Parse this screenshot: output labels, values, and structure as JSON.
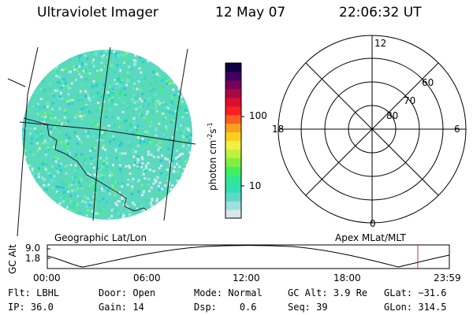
{
  "header": {
    "instrument": "Ultraviolet Imager",
    "date": "12 May 07",
    "time": "22:06:32 UT"
  },
  "geo_panel": {
    "label": "Geographic Lat/Lon"
  },
  "colorbar": {
    "unit_label": "photon cm",
    "unit_exp1": "-2",
    "unit_s": "s",
    "unit_exp2": "-1",
    "ticks": [
      "100",
      "10"
    ],
    "scale": "log",
    "colors": [
      "#d8e8e8",
      "#9de0dc",
      "#5fd8c8",
      "#30e0b0",
      "#30e890",
      "#40f060",
      "#80f040",
      "#c0f040",
      "#f0f040",
      "#f8d020",
      "#f8a020",
      "#f86020",
      "#f82020",
      "#d81030",
      "#a80840",
      "#780058",
      "#400060",
      "#100040"
    ]
  },
  "polar": {
    "label": "Apex MLat/MLT",
    "mlt_labels": {
      "top": "12",
      "left": "18",
      "right": "6",
      "bottom": "0"
    },
    "mlat_labels": [
      "60",
      "70",
      "80"
    ]
  },
  "altitude_plot": {
    "axis_label": "GC Alt",
    "y_ticks": [
      "9.0",
      "1.8"
    ],
    "x_ticks": [
      "00:00",
      "06:00",
      "12:00",
      "18:00",
      "23:59"
    ],
    "current_time_marker": "22:06",
    "marker_color": "#d03030"
  },
  "status": {
    "flt_label": "Flt:",
    "flt_value": "LBHL",
    "ip_label": "IP:",
    "ip_value": "36.0",
    "door_label": "Door:",
    "door_value": "Open",
    "gain_label": "Gain:",
    "gain_value": "14",
    "mode_label": "Mode:",
    "mode_value": "Normal",
    "dsp_label": "Dsp:",
    "dsp_value": "0.6",
    "gcalt_label": "GC Alt:",
    "gcalt_value": "3.9 Re",
    "seq_label": "Seq:",
    "seq_value": "39",
    "glat_label": "GLat:",
    "glat_value": "−31.6",
    "glon_label": "GLon:",
    "glon_value": "314.5"
  }
}
